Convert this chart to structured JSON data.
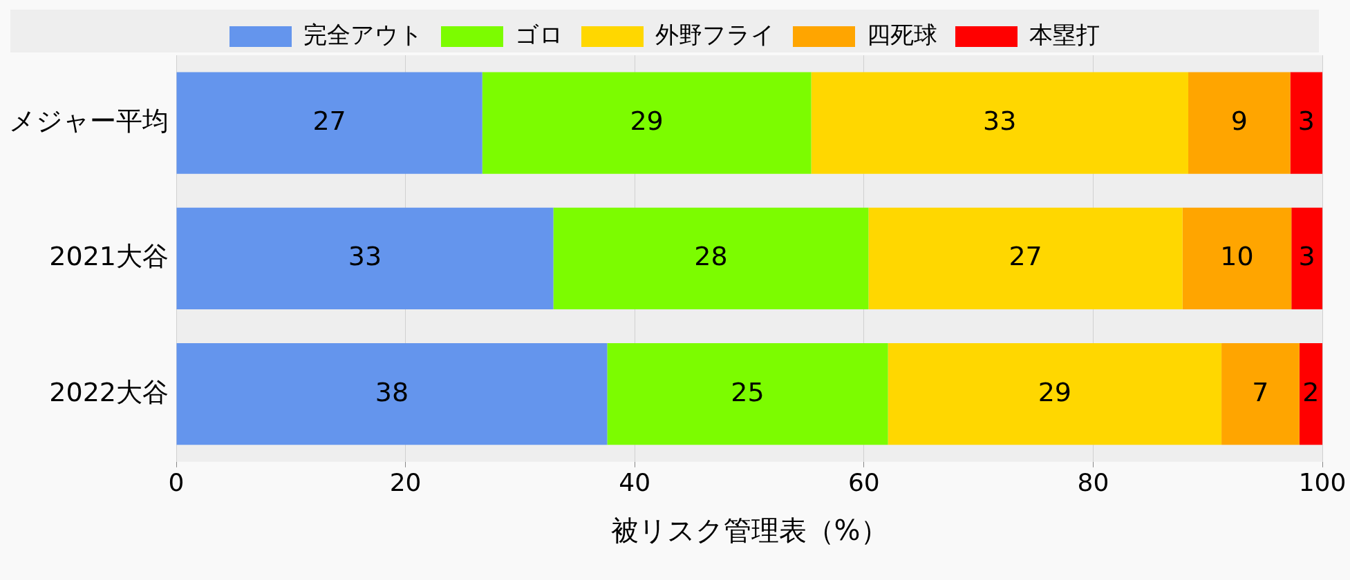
{
  "chart_data": {
    "type": "bar",
    "orientation": "horizontal",
    "stacked": true,
    "xlabel": "被リスク管理表（%）",
    "categories": [
      "メジャー平均",
      "2021大谷",
      "2022大谷"
    ],
    "series": [
      {
        "name": "完全アウト",
        "color": "#6495ed",
        "values": [
          26.7,
          32.9,
          37.6
        ],
        "value_labels": [
          "27",
          "33",
          "38"
        ]
      },
      {
        "name": "ゴロ",
        "color": "#7cfc00",
        "values": [
          28.7,
          27.5,
          24.5
        ],
        "value_labels": [
          "29",
          "28",
          "25"
        ]
      },
      {
        "name": "外野フライ",
        "color": "#ffd700",
        "values": [
          32.9,
          27.4,
          29.1
        ],
        "value_labels": [
          "33",
          "27",
          "29"
        ]
      },
      {
        "name": "四死球",
        "color": "#ffa500",
        "values": [
          8.9,
          9.5,
          6.8
        ],
        "value_labels": [
          "9",
          "10",
          "7"
        ]
      },
      {
        "name": "本塁打",
        "color": "#ff0000",
        "values": [
          2.8,
          2.7,
          2.0
        ],
        "value_labels": [
          "3",
          "3",
          "2"
        ]
      }
    ],
    "xlim": [
      0,
      100
    ],
    "xticks": [
      0,
      20,
      40,
      60,
      80,
      100
    ],
    "grid": "x",
    "legend": "top"
  }
}
